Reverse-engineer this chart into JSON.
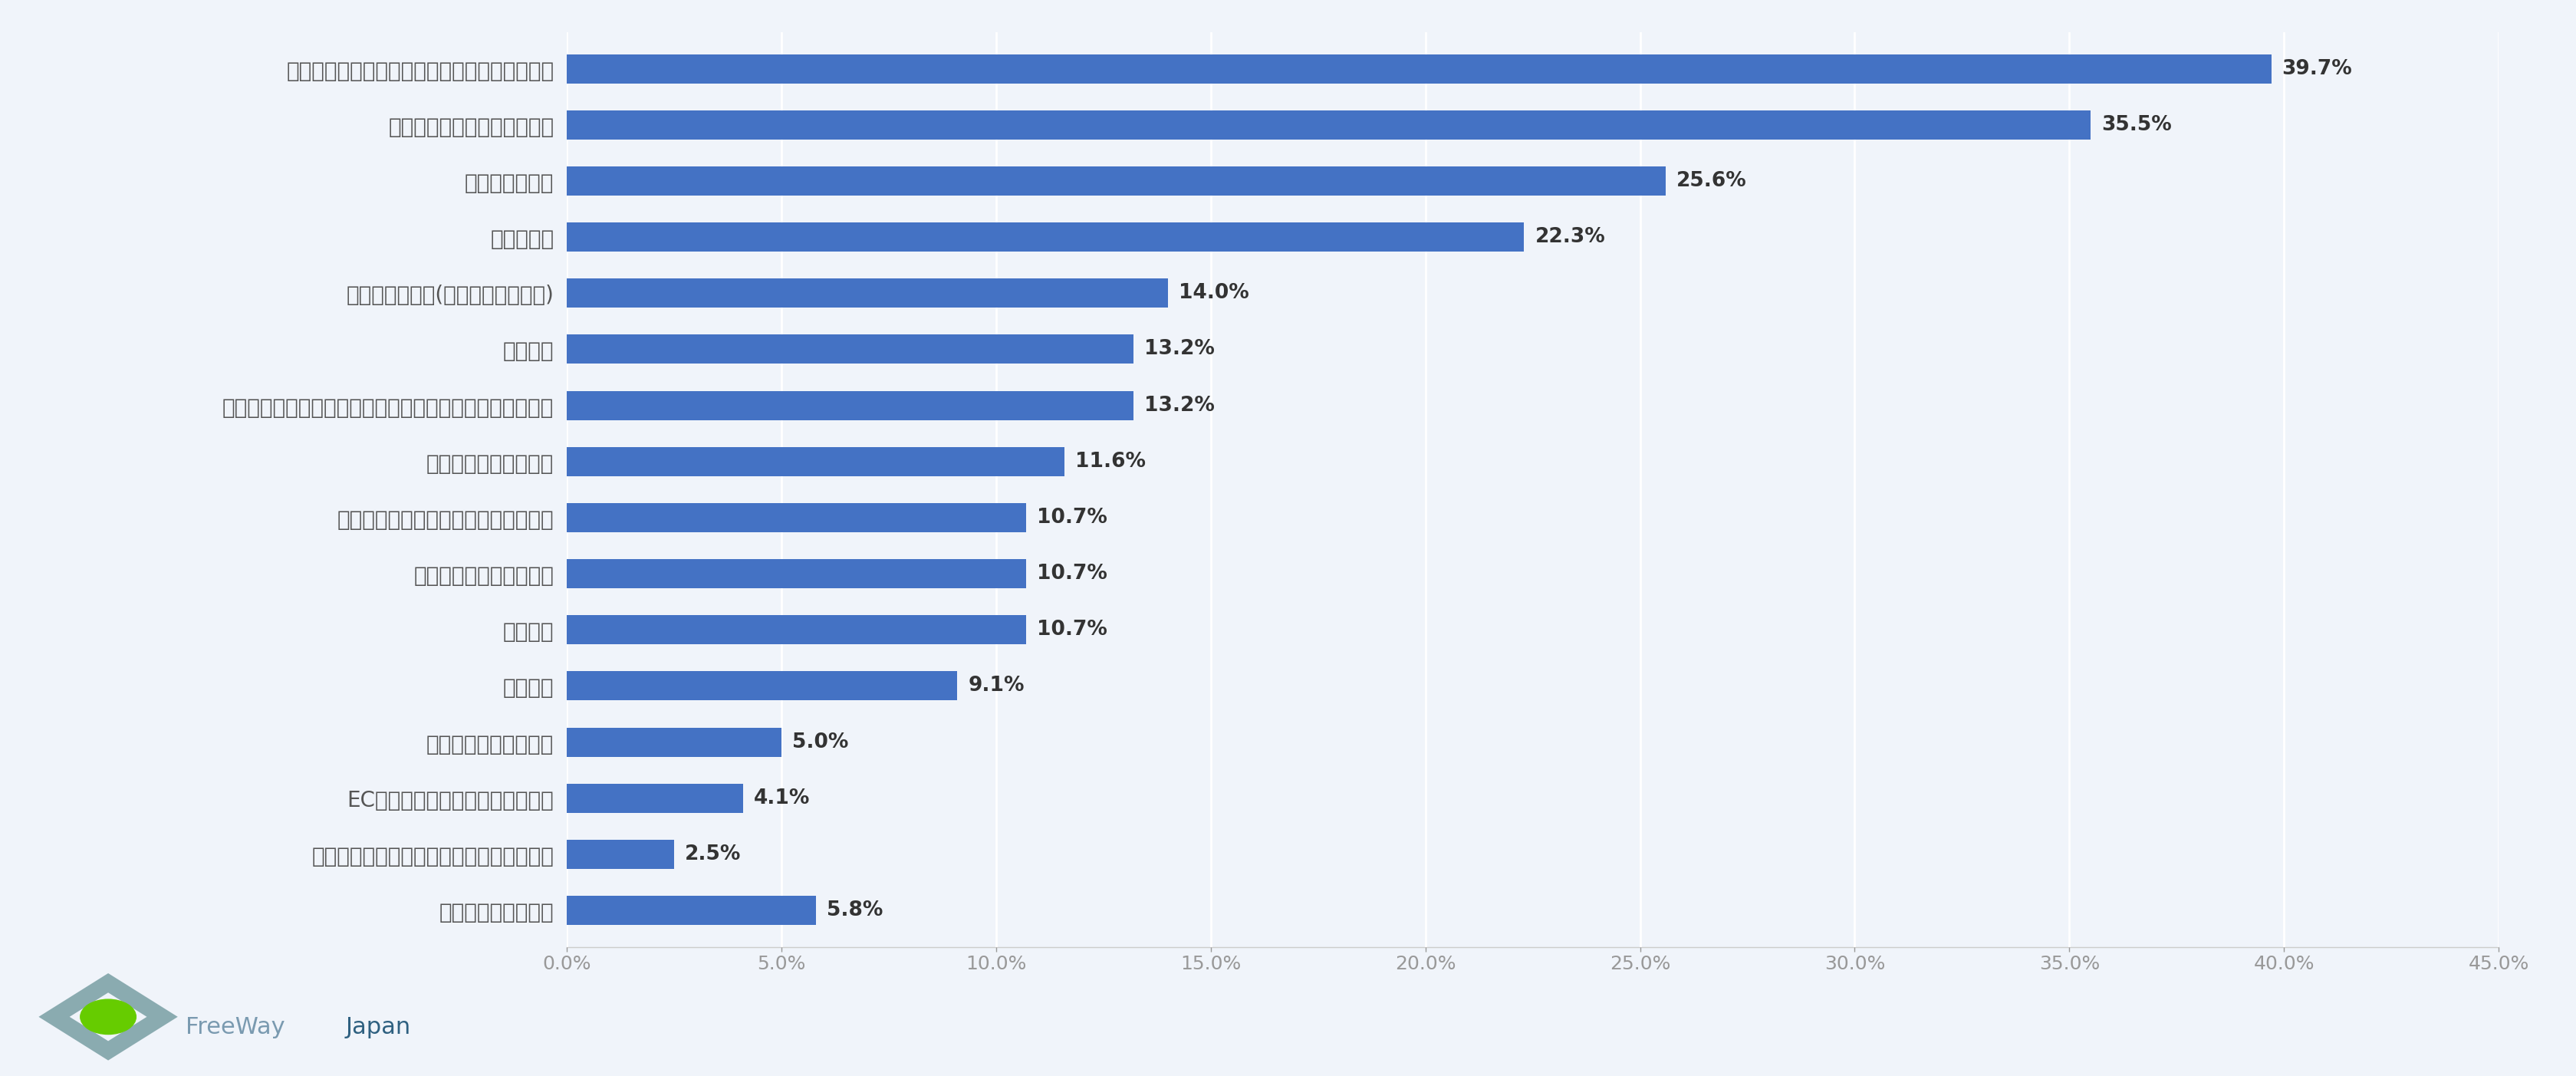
{
  "categories": [
    "既存の商品・サービスの見直し、アップデート",
    "新しい商品・サービスの開発",
    "取引先の見直し",
    "事業の拡大",
    "社員の待遇調整(給与・賞与も含む)",
    "人員拡大",
    "システム利用による自動化・省人化の推進、デジタル活用",
    "設備投資の推進・拡大",
    "事業に必要な機器の購入費用の見直し",
    "事業の一部を廃止、休業",
    "資金調達",
    "人員削減",
    "設備投資の中止・延期",
    "EC販売など事業のデジタル化推進",
    "インバウンド需要を見越したサービス強化",
    "その他（自由回答）"
  ],
  "values": [
    39.7,
    35.5,
    25.6,
    22.3,
    14.0,
    13.2,
    13.2,
    11.6,
    10.7,
    10.7,
    10.7,
    9.1,
    5.0,
    4.1,
    2.5,
    5.8
  ],
  "bar_color": "#4472C4",
  "background_color": "#f0f4fa",
  "text_color": "#555555",
  "value_label_color": "#333333",
  "xlim": [
    0,
    45.0
  ],
  "xticks": [
    0.0,
    5.0,
    10.0,
    15.0,
    20.0,
    25.0,
    30.0,
    35.0,
    40.0,
    45.0
  ],
  "xtick_labels": [
    "0.0%",
    "5.0%",
    "10.0%",
    "15.0%",
    "20.0%",
    "25.0%",
    "30.0%",
    "35.0%",
    "40.0%",
    "45.0%"
  ],
  "bar_height": 0.52,
  "font_size_labels": 20,
  "font_size_values": 19,
  "font_size_xticks": 18,
  "grid_color": "#ffffff",
  "grid_linewidth": 2.0,
  "freeway_text": "FreeWayJapan",
  "freeway_font_size": 22,
  "freeway_color_free": "#7a9ab0",
  "freeway_color_japan": "#2e6080"
}
